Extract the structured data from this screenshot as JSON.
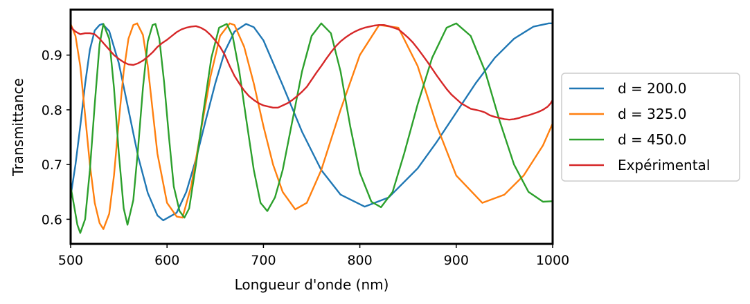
{
  "chart_data": {
    "type": "line",
    "xlabel": "Longueur d'onde (nm)",
    "ylabel": "Transmittance",
    "xlim": [
      500,
      1000
    ],
    "ylim": [
      0.555,
      0.983
    ],
    "x_ticks": [
      {
        "value": 500,
        "label": "500"
      },
      {
        "value": 600,
        "label": "600"
      },
      {
        "value": 700,
        "label": "700"
      },
      {
        "value": 800,
        "label": "800"
      },
      {
        "value": 900,
        "label": "900"
      },
      {
        "value": 1000,
        "label": "1000"
      }
    ],
    "y_ticks": [
      {
        "value": 0.6,
        "label": "0.6"
      },
      {
        "value": 0.7,
        "label": "0.7"
      },
      {
        "value": 0.8,
        "label": "0.8"
      },
      {
        "value": 0.9,
        "label": "0.9"
      }
    ],
    "grid": false,
    "legend_position": "right, outside plot",
    "series": [
      {
        "name": "d = 200.0",
        "color": "#1f77b4",
        "x": [
          500,
          505,
          510,
          515,
          520,
          525,
          530,
          533,
          540,
          550,
          560,
          570,
          580,
          590,
          596,
          610,
          620,
          630,
          640,
          650,
          660,
          670,
          682,
          690,
          700,
          720,
          740,
          760,
          780,
          805,
          830,
          860,
          880,
          900,
          920,
          940,
          960,
          980,
          996,
          1000
        ],
        "y": [
          0.642,
          0.7,
          0.77,
          0.847,
          0.91,
          0.945,
          0.955,
          0.957,
          0.944,
          0.885,
          0.8,
          0.715,
          0.648,
          0.607,
          0.598,
          0.612,
          0.65,
          0.71,
          0.78,
          0.848,
          0.907,
          0.943,
          0.957,
          0.951,
          0.927,
          0.845,
          0.76,
          0.69,
          0.645,
          0.623,
          0.64,
          0.693,
          0.742,
          0.795,
          0.848,
          0.895,
          0.93,
          0.952,
          0.958,
          0.958
        ]
      },
      {
        "name": "d = 325.0",
        "color": "#ff7f0e",
        "x": [
          500,
          505,
          510,
          515,
          520,
          525,
          530,
          534,
          540,
          545,
          550,
          555,
          560,
          565,
          569,
          575,
          580,
          585,
          590,
          600,
          610,
          616,
          625,
          635,
          645,
          655,
          665,
          670,
          680,
          690,
          700,
          710,
          720,
          733,
          745,
          760,
          780,
          800,
          820,
          840,
          860,
          880,
          900,
          927,
          950,
          970,
          990,
          1000
        ],
        "y": [
          0.957,
          0.935,
          0.88,
          0.79,
          0.7,
          0.63,
          0.593,
          0.582,
          0.61,
          0.68,
          0.78,
          0.87,
          0.93,
          0.955,
          0.958,
          0.937,
          0.88,
          0.8,
          0.72,
          0.63,
          0.605,
          0.603,
          0.66,
          0.76,
          0.86,
          0.935,
          0.958,
          0.955,
          0.915,
          0.848,
          0.77,
          0.7,
          0.65,
          0.618,
          0.63,
          0.69,
          0.8,
          0.9,
          0.955,
          0.95,
          0.88,
          0.77,
          0.68,
          0.63,
          0.645,
          0.68,
          0.735,
          0.775
        ]
      },
      {
        "name": "d = 450.0",
        "color": "#2ca02c",
        "x": [
          500,
          504,
          507,
          510,
          515,
          520,
          525,
          530,
          534,
          540,
          545,
          550,
          555,
          559,
          565,
          570,
          575,
          580,
          585,
          588,
          592,
          597,
          602,
          607,
          613,
          618,
          623,
          630,
          638,
          646,
          654,
          662,
          668,
          675,
          682,
          690,
          697,
          704,
          712,
          720,
          730,
          740,
          750,
          760,
          770,
          780,
          790,
          800,
          812,
          822,
          834,
          846,
          860,
          875,
          890,
          900,
          915,
          930,
          945,
          960,
          975,
          990,
          1000
        ],
        "y": [
          0.66,
          0.62,
          0.59,
          0.575,
          0.6,
          0.69,
          0.81,
          0.92,
          0.957,
          0.93,
          0.84,
          0.72,
          0.62,
          0.59,
          0.635,
          0.73,
          0.84,
          0.925,
          0.955,
          0.957,
          0.93,
          0.85,
          0.75,
          0.66,
          0.615,
          0.603,
          0.62,
          0.7,
          0.8,
          0.895,
          0.95,
          0.957,
          0.935,
          0.87,
          0.785,
          0.69,
          0.63,
          0.615,
          0.64,
          0.69,
          0.78,
          0.87,
          0.935,
          0.958,
          0.94,
          0.87,
          0.77,
          0.685,
          0.632,
          0.622,
          0.65,
          0.72,
          0.81,
          0.895,
          0.95,
          0.958,
          0.935,
          0.87,
          0.78,
          0.7,
          0.65,
          0.632,
          0.633
        ]
      },
      {
        "name": "Expérimental",
        "color": "#d62728",
        "x": [
          500,
          502,
          505,
          510,
          515,
          520,
          525,
          530,
          535,
          540,
          545,
          550,
          555,
          560,
          565,
          570,
          575,
          580,
          585,
          590,
          595,
          600,
          605,
          610,
          615,
          620,
          625,
          630,
          635,
          640,
          645,
          650,
          655,
          660,
          665,
          670,
          675,
          680,
          685,
          690,
          695,
          700,
          705,
          710,
          715,
          720,
          725,
          730,
          735,
          740,
          745,
          750,
          755,
          760,
          765,
          770,
          775,
          780,
          785,
          790,
          795,
          800,
          805,
          810,
          815,
          820,
          825,
          830,
          835,
          840,
          845,
          850,
          855,
          860,
          865,
          870,
          875,
          880,
          885,
          890,
          895,
          900,
          905,
          910,
          915,
          920,
          925,
          930,
          935,
          940,
          945,
          950,
          955,
          960,
          965,
          970,
          975,
          980,
          985,
          990,
          995,
          998,
          1000
        ],
        "y": [
          0.953,
          0.948,
          0.943,
          0.938,
          0.94,
          0.94,
          0.938,
          0.93,
          0.92,
          0.91,
          0.9,
          0.893,
          0.887,
          0.883,
          0.882,
          0.885,
          0.89,
          0.897,
          0.905,
          0.915,
          0.922,
          0.928,
          0.935,
          0.942,
          0.947,
          0.95,
          0.952,
          0.953,
          0.95,
          0.945,
          0.937,
          0.927,
          0.915,
          0.9,
          0.88,
          0.862,
          0.848,
          0.835,
          0.825,
          0.818,
          0.812,
          0.808,
          0.806,
          0.804,
          0.804,
          0.808,
          0.812,
          0.818,
          0.825,
          0.833,
          0.842,
          0.855,
          0.868,
          0.88,
          0.893,
          0.905,
          0.916,
          0.925,
          0.932,
          0.938,
          0.943,
          0.947,
          0.95,
          0.952,
          0.954,
          0.955,
          0.955,
          0.953,
          0.95,
          0.947,
          0.94,
          0.932,
          0.923,
          0.912,
          0.9,
          0.888,
          0.875,
          0.862,
          0.85,
          0.838,
          0.828,
          0.82,
          0.812,
          0.807,
          0.802,
          0.8,
          0.798,
          0.795,
          0.79,
          0.787,
          0.785,
          0.783,
          0.782,
          0.783,
          0.785,
          0.788,
          0.79,
          0.793,
          0.796,
          0.8,
          0.806,
          0.812,
          0.818
        ]
      }
    ]
  }
}
